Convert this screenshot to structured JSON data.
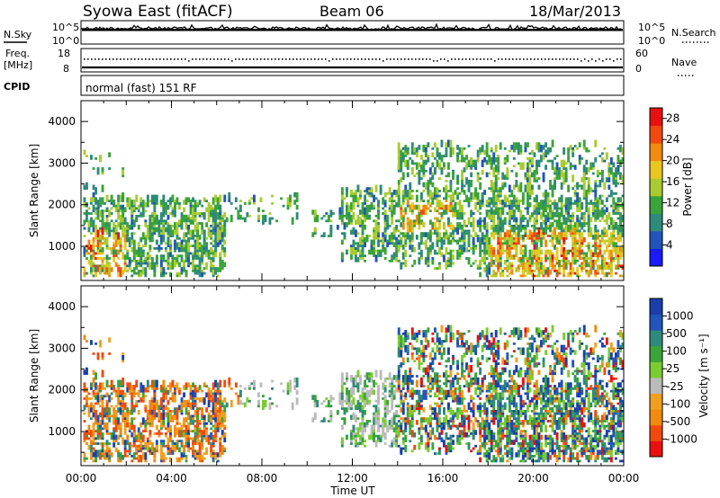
{
  "header": {
    "station": "Syowa East (fitACF)",
    "beam": "Beam 06",
    "date": "18/Mar/2013"
  },
  "strip_labels": {
    "nsky": "N.Sky",
    "nsearch": "N.Search",
    "freq": "Freq.",
    "freq_unit": "[MHz]",
    "nave": "Nave",
    "cpid": "CPID",
    "cpid_text": "normal (fast) 151 RF"
  },
  "strip_ticks": {
    "nsky_top": "10^5",
    "nsky_bottom": "10^0",
    "freq_top": "18",
    "freq_bottom": "8",
    "nave_top": "60",
    "nave_bottom": "0"
  },
  "colors": {
    "power_scale": [
      "#1a1aff",
      "#2255bb",
      "#2e8a7a",
      "#3aa33a",
      "#a8cc30",
      "#e8c820",
      "#f08a10",
      "#f04a10",
      "#e81010"
    ],
    "velocity_scale": [
      "#e81010",
      "#f04a10",
      "#f08a10",
      "#f0a020",
      "#bbbbbb",
      "#7acc30",
      "#3aa33a",
      "#2e8a7a",
      "#2255bb",
      "#1a3faa"
    ]
  },
  "chart_data": [
    {
      "type": "heatmap",
      "name": "power",
      "ylabel": "Slant Range [km]",
      "xlabel": "Time UT",
      "x_ticks": [
        "00:00",
        "04:00",
        "08:00",
        "12:00",
        "16:00",
        "20:00",
        "00:00"
      ],
      "y_ticks": [
        "1000",
        "2000",
        "3000",
        "4000"
      ],
      "ylim": [
        180,
        4500
      ],
      "colorbar_label": "Power [dB]",
      "colorbar_ticks": [
        "4",
        "8",
        "12",
        "16",
        "20",
        "24",
        "28"
      ],
      "clim": [
        0,
        30
      ]
    },
    {
      "type": "heatmap",
      "name": "velocity",
      "ylabel": "Slant Range [km]",
      "xlabel": "Time UT",
      "x_ticks": [
        "00:00",
        "04:00",
        "08:00",
        "12:00",
        "16:00",
        "20:00",
        "00:00"
      ],
      "y_ticks": [
        "1000",
        "2000",
        "3000",
        "4000"
      ],
      "ylim": [
        180,
        4500
      ],
      "colorbar_label": "Velocity [m s⁻¹]",
      "colorbar_ticks": [
        "-1000",
        "-500",
        "-100",
        "-25",
        "25",
        "100",
        "500",
        "1000"
      ]
    }
  ]
}
